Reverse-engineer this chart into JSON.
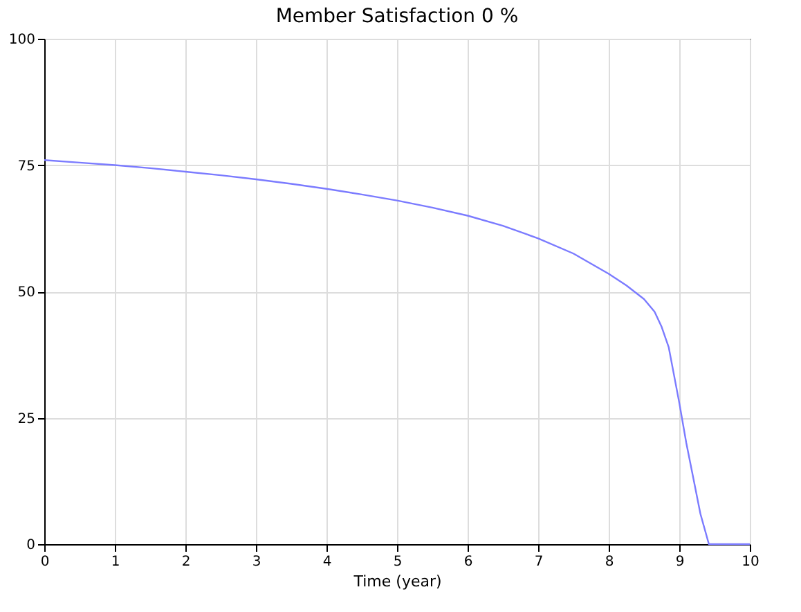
{
  "chart_data": {
    "type": "line",
    "title": "Member Satisfaction 0 %",
    "xlabel": "Time (year)",
    "series": [
      {
        "color": "#7b7bff",
        "x": [
          0,
          0.5,
          1,
          1.5,
          2,
          2.5,
          3,
          3.5,
          4,
          4.5,
          5,
          5.5,
          6,
          6.5,
          7,
          7.5,
          8,
          8.25,
          8.5,
          8.65,
          8.75,
          8.85,
          9,
          9.1,
          9.2,
          9.3,
          9.42,
          9.5,
          10
        ],
        "values": [
          76,
          75.5,
          75,
          74.4,
          73.7,
          73,
          72.2,
          71.3,
          70.3,
          69.2,
          68,
          66.6,
          65,
          63,
          60.5,
          57.5,
          53.5,
          51.2,
          48.5,
          46,
          43,
          39,
          28,
          20,
          13,
          6,
          0,
          0,
          0
        ]
      }
    ],
    "xlim": [
      0,
      10
    ],
    "xticks": [
      0,
      1,
      2,
      3,
      4,
      5,
      6,
      7,
      8,
      9,
      10
    ],
    "ylim": [
      0,
      100
    ],
    "yticks": [
      0,
      25,
      50,
      75,
      100
    ],
    "grid": true
  }
}
